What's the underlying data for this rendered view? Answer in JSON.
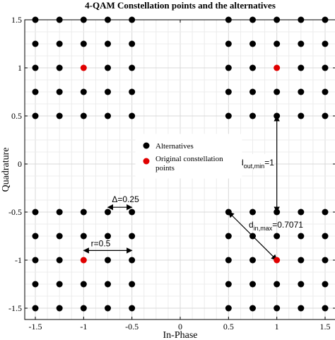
{
  "chart_data": {
    "type": "scatter",
    "title": "4-QAM Constellation points and the alternatives",
    "xlabel": "In-Phase",
    "ylabel": "Quadrature",
    "xlim": [
      -1.5,
      1.5
    ],
    "ylim": [
      -1.5,
      1.5
    ],
    "xticks": [
      -1.5,
      -1,
      -0.5,
      0,
      0.5,
      1,
      1.5
    ],
    "yticks": [
      -1.5,
      -1,
      -0.5,
      0,
      0.5,
      1,
      1.5
    ],
    "xtick_labels": [
      "-1.5",
      "-1",
      "-0.5",
      "0",
      "0.5",
      "1",
      "1.5"
    ],
    "ytick_labels": [
      "-1.5",
      "-1",
      "-0.5",
      "0",
      "0.5",
      "1",
      "1.5"
    ],
    "grid": true,
    "grid_minor_step": 0.125,
    "legend_position": "center-left",
    "series": [
      {
        "name": "Alternatives",
        "color": "#000000",
        "grid_spacing": 0.25,
        "cluster_centers": [
          [
            -1,
            1
          ],
          [
            1,
            1
          ],
          [
            -1,
            -1
          ],
          [
            1,
            -1
          ]
        ],
        "cluster_halfwidth": 0.5,
        "exclude_centers": true
      },
      {
        "name": "Original constellation points",
        "color": "#e00000",
        "points": [
          [
            -1,
            1
          ],
          [
            1,
            1
          ],
          [
            -1,
            -1
          ],
          [
            1,
            -1
          ]
        ]
      }
    ],
    "annotations": [
      {
        "id": "delta",
        "text": "Δ=0.25",
        "from": [
          -0.75,
          -0.45
        ],
        "to": [
          -0.5,
          -0.45
        ]
      },
      {
        "id": "r",
        "text": "r=0.5",
        "from": [
          -1,
          -0.9
        ],
        "to": [
          -0.5,
          -0.9
        ]
      },
      {
        "id": "dout",
        "main": "d",
        "sub": "out,min",
        "suffix": "=1",
        "from": [
          1,
          0.5
        ],
        "to": [
          1,
          -0.5
        ]
      },
      {
        "id": "din",
        "main": "d",
        "sub": "in,max",
        "suffix": "=0.7071",
        "from": [
          0.5,
          -0.5
        ],
        "to": [
          1,
          -1
        ]
      }
    ]
  }
}
